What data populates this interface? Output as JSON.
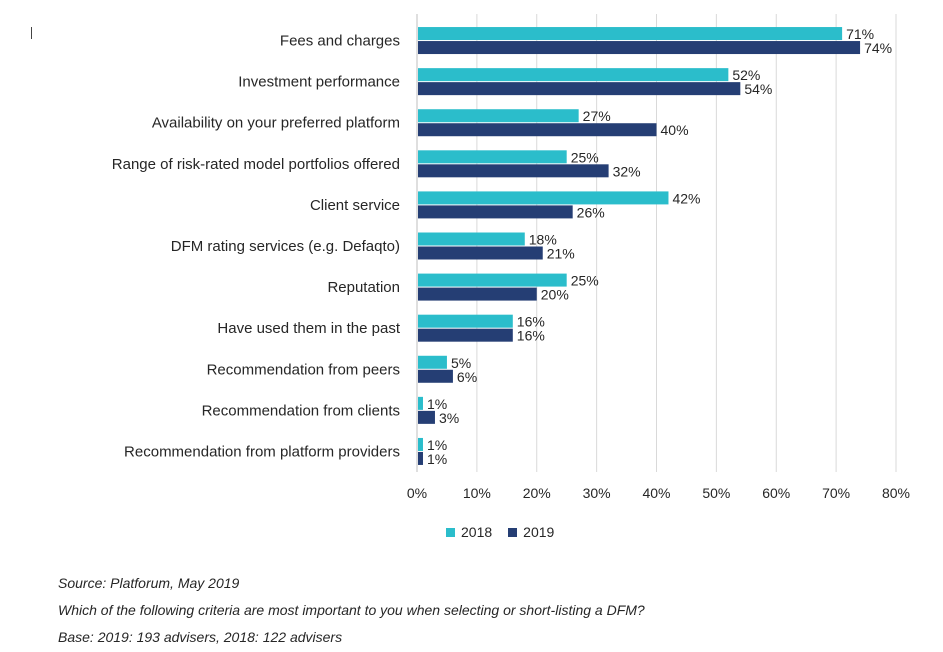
{
  "chart_data": {
    "type": "bar",
    "orientation": "horizontal",
    "categories": [
      "Fees and charges",
      "Investment performance",
      "Availability on your preferred platform",
      "Range of risk-rated model portfolios offered",
      "Client service",
      "DFM rating services (e.g. Defaqto)",
      "Reputation",
      "Have used them in the past",
      "Recommendation from peers",
      "Recommendation from clients",
      "Recommendation from platform providers"
    ],
    "series": [
      {
        "name": "2018",
        "color": "#2bbdcb",
        "values": [
          71,
          52,
          27,
          25,
          42,
          18,
          25,
          16,
          5,
          1,
          1
        ]
      },
      {
        "name": "2019",
        "color": "#253e74",
        "values": [
          74,
          54,
          40,
          32,
          26,
          21,
          20,
          16,
          6,
          3,
          1
        ]
      }
    ],
    "xlim": [
      0,
      80
    ],
    "xticks": [
      "0%",
      "10%",
      "20%",
      "30%",
      "40%",
      "50%",
      "60%",
      "70%",
      "80%"
    ],
    "value_suffix": "%",
    "grid": "vertical",
    "legend_position": "bottom"
  },
  "legend": {
    "label_2018": "2018",
    "label_2019": "2019"
  },
  "notes": {
    "source": "Source: Platforum, May 2019",
    "question": "Which of the following criteria are most important to you when selecting or short-listing a DFM?",
    "base": "Base: 2019: 193 advisers, 2018: 122 advisers"
  }
}
